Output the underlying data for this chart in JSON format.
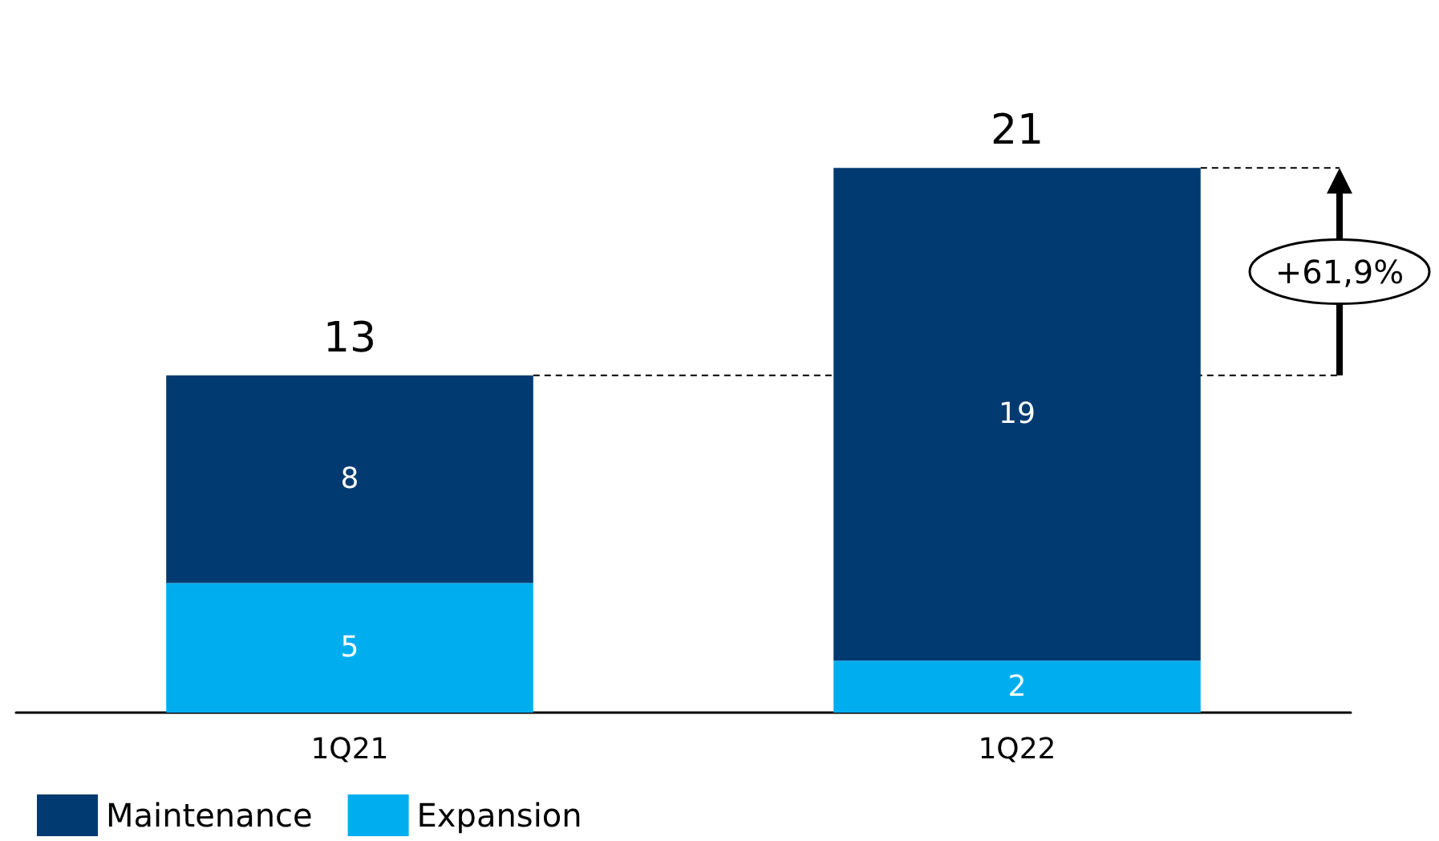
{
  "chart_data": {
    "type": "bar",
    "stacked": true,
    "categories": [
      "1Q21",
      "1Q22"
    ],
    "series": [
      {
        "name": "Expansion",
        "color": "#00aeef",
        "values": [
          5,
          2
        ]
      },
      {
        "name": "Maintenance",
        "color": "#003a70",
        "values": [
          8,
          19
        ]
      }
    ],
    "data_labels": true,
    "totals": [
      "13",
      "21"
    ],
    "ref_lines": [
      {
        "axis": "y",
        "value": 13,
        "line_style": "dashed",
        "color": "#000000"
      },
      {
        "axis": "y",
        "value": 21,
        "line_style": "dashed",
        "color": "#000000"
      }
    ],
    "annotations": [
      "+61,9%"
    ],
    "legend": "bottom left"
  }
}
